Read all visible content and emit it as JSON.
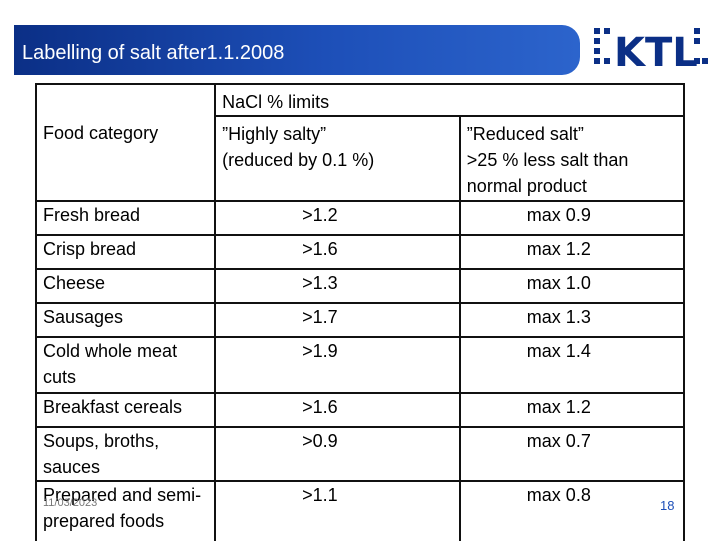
{
  "slide": {
    "title": "Labelling  of salt after1.1.2008",
    "date": "11/03/2023",
    "page_number": "18",
    "accent_color": "#1d4fb8"
  },
  "logo": {
    "icon": "ktl-logo-icon",
    "text": "KTL"
  },
  "table": {
    "group_header": "NaCl % limits",
    "col_food": "Food category",
    "col_high_line1": "”Highly salty”",
    "col_high_line2": "(reduced by 0.1 %)",
    "col_reduced_line1": "”Reduced salt”",
    "col_reduced_line2": ">25 % less salt than",
    "col_reduced_line3": "normal product",
    "rows": [
      {
        "category": "Fresh bread",
        "highly_salty": ">1.2",
        "reduced_salt": "max 0.9"
      },
      {
        "category": "Crisp bread",
        "highly_salty": ">1.6",
        "reduced_salt": "max 1.2"
      },
      {
        "category": "Cheese",
        "highly_salty": ">1.3",
        "reduced_salt": "max 1.0"
      },
      {
        "category": "Sausages",
        "highly_salty": ">1.7",
        "reduced_salt": "max 1.3"
      },
      {
        "category": "Cold whole meat cuts",
        "highly_salty": ">1.9",
        "reduced_salt": "max 1.4"
      },
      {
        "category": "Breakfast cereals",
        "highly_salty": ">1.6",
        "reduced_salt": "max 1.2"
      },
      {
        "category": "Soups, broths, sauces",
        "highly_salty": ">0.9",
        "reduced_salt": "max 0.7"
      },
      {
        "category": "Prepared and semi-prepared foods",
        "highly_salty": ">1.1",
        "reduced_salt": "max 0.8"
      }
    ]
  }
}
